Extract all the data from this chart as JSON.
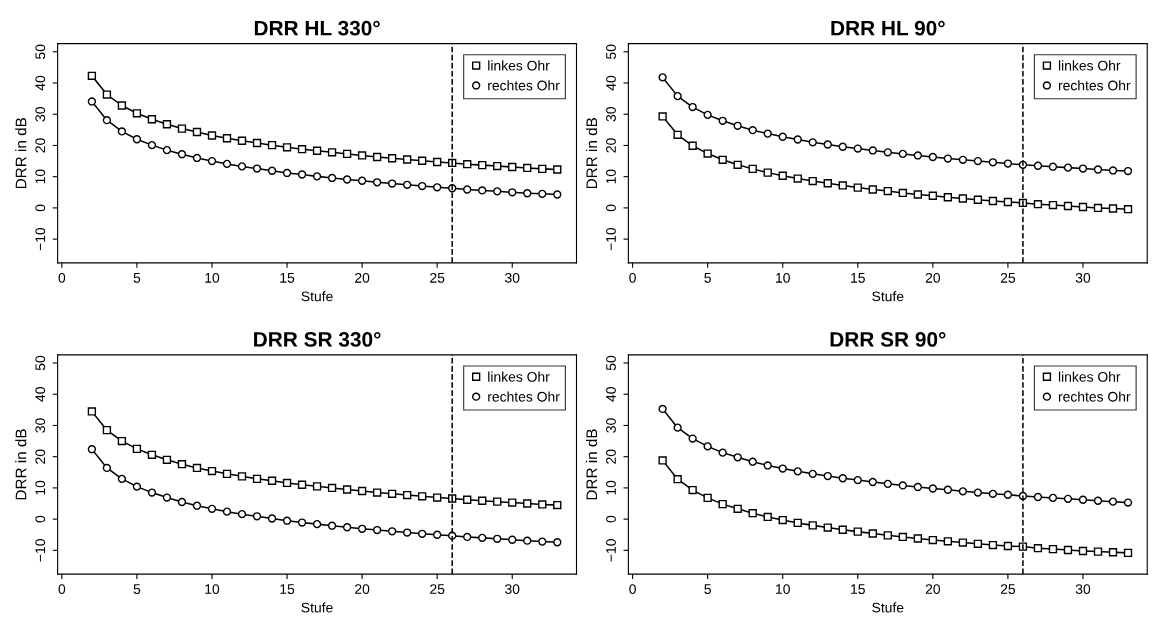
{
  "chart_data": [
    {
      "type": "line",
      "title": "DRR HL 330°",
      "xlabel": "Stufe",
      "ylabel": "DRR in dB",
      "xlim": [
        -0.28,
        34.28
      ],
      "ylim": [
        -17.6,
        52.6
      ],
      "xticks": [
        0,
        5,
        10,
        15,
        20,
        25,
        30
      ],
      "yticks": [
        -10,
        0,
        10,
        20,
        30,
        40,
        50
      ],
      "grid": false,
      "legend": "top right",
      "line_style": "solid",
      "x": [
        2,
        3,
        4,
        5,
        6,
        7,
        8,
        9,
        10,
        11,
        12,
        13,
        14,
        15,
        16,
        17,
        18,
        19,
        20,
        21,
        22,
        23,
        24,
        25,
        26,
        27,
        28,
        29,
        30,
        31,
        32,
        33
      ],
      "ref_lines": [
        {
          "axis": "x",
          "value": 26,
          "line_style": "dashed",
          "color": "#000000"
        }
      ],
      "series": [
        {
          "name": "linkes Ohr",
          "color": "#000000",
          "marker": "square",
          "values": [
            42.3,
            36.3,
            32.8,
            30.3,
            28.4,
            26.8,
            25.4,
            24.3,
            23.2,
            22.3,
            21.5,
            20.8,
            20.1,
            19.4,
            18.8,
            18.3,
            17.8,
            17.3,
            16.8,
            16.3,
            15.9,
            15.5,
            15.1,
            14.7,
            14.4,
            14.0,
            13.7,
            13.4,
            13.1,
            12.8,
            12.5,
            12.3
          ]
        },
        {
          "name": "rechtes Ohr",
          "color": "#000000",
          "marker": "circle",
          "values": [
            34.1,
            28.1,
            24.5,
            22.0,
            20.1,
            18.5,
            17.2,
            16.0,
            15.0,
            14.1,
            13.3,
            12.6,
            11.9,
            11.2,
            10.7,
            10.1,
            9.6,
            9.1,
            8.7,
            8.2,
            7.8,
            7.4,
            7.0,
            6.6,
            6.3,
            5.9,
            5.6,
            5.3,
            5.0,
            4.7,
            4.5,
            4.3
          ]
        }
      ]
    },
    {
      "type": "line",
      "title": "DRR HL 90°",
      "xlabel": "Stufe",
      "ylabel": "DRR in dB",
      "xlim": [
        -0.28,
        34.28
      ],
      "ylim": [
        -17.6,
        52.6
      ],
      "xticks": [
        0,
        5,
        10,
        15,
        20,
        25,
        30
      ],
      "yticks": [
        -10,
        0,
        10,
        20,
        30,
        40,
        50
      ],
      "grid": false,
      "legend": "top right",
      "line_style": "solid",
      "x": [
        2,
        3,
        4,
        5,
        6,
        7,
        8,
        9,
        10,
        11,
        12,
        13,
        14,
        15,
        16,
        17,
        18,
        19,
        20,
        21,
        22,
        23,
        24,
        25,
        26,
        27,
        28,
        29,
        30,
        31,
        32,
        33
      ],
      "ref_lines": [
        {
          "axis": "x",
          "value": 26,
          "line_style": "dashed",
          "color": "#000000"
        }
      ],
      "series": [
        {
          "name": "linkes Ohr",
          "color": "#000000",
          "marker": "square",
          "values": [
            29.3,
            23.4,
            19.9,
            17.4,
            15.4,
            13.8,
            12.5,
            11.3,
            10.3,
            9.4,
            8.6,
            7.9,
            7.2,
            6.5,
            5.9,
            5.4,
            4.8,
            4.3,
            3.9,
            3.4,
            3.0,
            2.6,
            2.2,
            1.9,
            1.6,
            1.2,
            0.9,
            0.6,
            0.3,
            0.0,
            -0.2,
            -0.4
          ]
        },
        {
          "name": "rechtes Ohr",
          "color": "#000000",
          "marker": "circle",
          "values": [
            41.8,
            35.8,
            32.3,
            29.8,
            27.9,
            26.3,
            24.9,
            23.8,
            22.8,
            21.9,
            21.0,
            20.3,
            19.6,
            19.0,
            18.4,
            17.8,
            17.3,
            16.8,
            16.3,
            15.8,
            15.4,
            15.0,
            14.6,
            14.2,
            13.8,
            13.5,
            13.2,
            12.9,
            12.6,
            12.3,
            12.0,
            11.8
          ]
        }
      ]
    },
    {
      "type": "line",
      "title": "DRR SR 330°",
      "xlabel": "Stufe",
      "ylabel": "DRR in dB",
      "xlim": [
        -0.28,
        34.28
      ],
      "ylim": [
        -17.6,
        52.6
      ],
      "xticks": [
        0,
        5,
        10,
        15,
        20,
        25,
        30
      ],
      "yticks": [
        -10,
        0,
        10,
        20,
        30,
        40,
        50
      ],
      "grid": false,
      "legend": "top right",
      "line_style": "solid",
      "x": [
        2,
        3,
        4,
        5,
        6,
        7,
        8,
        9,
        10,
        11,
        12,
        13,
        14,
        15,
        16,
        17,
        18,
        19,
        20,
        21,
        22,
        23,
        24,
        25,
        26,
        27,
        28,
        29,
        30,
        31,
        32,
        33
      ],
      "ref_lines": [
        {
          "axis": "x",
          "value": 26,
          "line_style": "dashed",
          "color": "#000000"
        }
      ],
      "series": [
        {
          "name": "linkes Ohr",
          "color": "#000000",
          "marker": "square",
          "values": [
            34.5,
            28.5,
            25.0,
            22.5,
            20.6,
            19.0,
            17.6,
            16.4,
            15.4,
            14.5,
            13.7,
            12.9,
            12.3,
            11.6,
            11.0,
            10.5,
            10.0,
            9.5,
            9.0,
            8.5,
            8.1,
            7.7,
            7.3,
            6.9,
            6.6,
            6.2,
            5.9,
            5.6,
            5.3,
            5.0,
            4.7,
            4.5
          ]
        },
        {
          "name": "rechtes Ohr",
          "color": "#000000",
          "marker": "circle",
          "values": [
            22.4,
            16.4,
            12.9,
            10.4,
            8.5,
            6.9,
            5.5,
            4.3,
            3.3,
            2.4,
            1.6,
            0.9,
            0.2,
            -0.5,
            -1.1,
            -1.6,
            -2.1,
            -2.6,
            -3.1,
            -3.5,
            -3.9,
            -4.3,
            -4.7,
            -5.0,
            -5.3,
            -5.7,
            -6.0,
            -6.3,
            -6.6,
            -6.9,
            -7.2,
            -7.4
          ]
        }
      ]
    },
    {
      "type": "line",
      "title": "DRR SR 90°",
      "xlabel": "Stufe",
      "ylabel": "DRR in dB",
      "xlim": [
        -0.28,
        34.28
      ],
      "ylim": [
        -17.6,
        52.6
      ],
      "xticks": [
        0,
        5,
        10,
        15,
        20,
        25,
        30
      ],
      "yticks": [
        -10,
        0,
        10,
        20,
        30,
        40,
        50
      ],
      "grid": false,
      "legend": "top right",
      "line_style": "solid",
      "x": [
        2,
        3,
        4,
        5,
        6,
        7,
        8,
        9,
        10,
        11,
        12,
        13,
        14,
        15,
        16,
        17,
        18,
        19,
        20,
        21,
        22,
        23,
        24,
        25,
        26,
        27,
        28,
        29,
        30,
        31,
        32,
        33
      ],
      "ref_lines": [
        {
          "axis": "x",
          "value": 26,
          "line_style": "dashed",
          "color": "#000000"
        }
      ],
      "series": [
        {
          "name": "linkes Ohr",
          "color": "#000000",
          "marker": "square",
          "values": [
            18.8,
            12.8,
            9.3,
            6.8,
            4.8,
            3.3,
            1.9,
            0.7,
            -0.3,
            -1.2,
            -2.0,
            -2.7,
            -3.4,
            -4.0,
            -4.6,
            -5.2,
            -5.7,
            -6.2,
            -6.7,
            -7.1,
            -7.5,
            -7.9,
            -8.3,
            -8.6,
            -8.8,
            -9.3,
            -9.6,
            -9.9,
            -10.2,
            -10.4,
            -10.6,
            -10.8
          ]
        },
        {
          "name": "rechtes Ohr",
          "color": "#000000",
          "marker": "circle",
          "values": [
            35.3,
            29.3,
            25.8,
            23.3,
            21.3,
            19.8,
            18.4,
            17.2,
            16.2,
            15.3,
            14.5,
            13.8,
            13.1,
            12.5,
            11.9,
            11.3,
            10.8,
            10.3,
            9.8,
            9.4,
            8.9,
            8.5,
            8.1,
            7.8,
            7.4,
            7.1,
            6.8,
            6.5,
            6.2,
            5.9,
            5.6,
            5.3
          ]
        }
      ]
    }
  ]
}
